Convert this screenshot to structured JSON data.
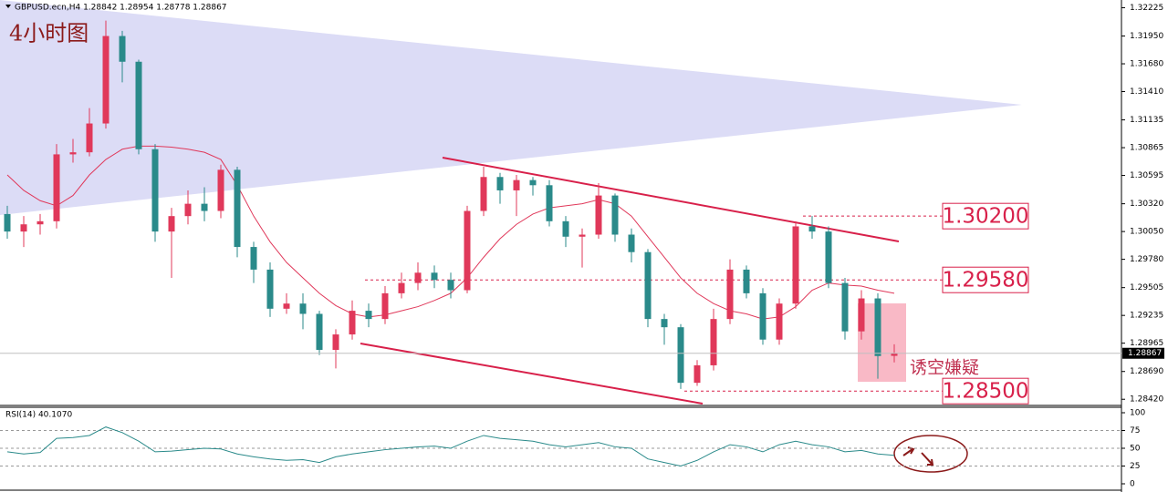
{
  "chart_data": [
    {
      "type": "candlestick",
      "title": "GBPUSD.ecn,H4  1.28842 1.28954 1.28778 1.28867",
      "annotations": [
        "4小时图",
        "诱空嫌疑"
      ],
      "up_color": "#e0385a",
      "down_color": "#2a8a8a",
      "ma_color": "#e0385a",
      "ylim": [
        1.2836,
        1.323
      ],
      "yticks": [
        {
          "value": 1.32225,
          "label": "1.32225"
        },
        {
          "value": 1.3195,
          "label": "1.31950"
        },
        {
          "value": 1.3168,
          "label": "1.31680"
        },
        {
          "value": 1.3141,
          "label": "1.31410"
        },
        {
          "value": 1.31135,
          "label": "1.31135"
        },
        {
          "value": 1.30865,
          "label": "1.30865"
        },
        {
          "value": 1.30595,
          "label": "1.30595"
        },
        {
          "value": 1.3032,
          "label": "1.30320"
        },
        {
          "value": 1.3005,
          "label": "1.30050"
        },
        {
          "value": 1.2978,
          "label": "1.29780"
        },
        {
          "value": 1.29505,
          "label": "1.29505"
        },
        {
          "value": 1.29235,
          "label": "1.29235"
        },
        {
          "value": 1.28965,
          "label": "1.28965"
        },
        {
          "value": 1.2869,
          "label": "1.28690"
        },
        {
          "value": 1.2842,
          "label": "1.28420"
        }
      ],
      "levels": [
        {
          "value": 1.302,
          "label": "1.30200"
        },
        {
          "value": 1.2958,
          "label": "1.29580"
        },
        {
          "value": 1.285,
          "label": "1.28500"
        }
      ],
      "candles": [
        [
          1.3022,
          1.303,
          1.2998,
          1.3005
        ],
        [
          1.3005,
          1.302,
          1.299,
          1.3012
        ],
        [
          1.3012,
          1.3022,
          1.3002,
          1.3015
        ],
        [
          1.3015,
          1.309,
          1.3008,
          1.308
        ],
        [
          1.308,
          1.3095,
          1.3072,
          1.3082
        ],
        [
          1.3082,
          1.3125,
          1.3078,
          1.311
        ],
        [
          1.311,
          1.321,
          1.3105,
          1.3195
        ],
        [
          1.3195,
          1.32,
          1.315,
          1.317
        ],
        [
          1.317,
          1.3172,
          1.308,
          1.3085
        ],
        [
          1.3085,
          1.309,
          1.2995,
          1.3005
        ],
        [
          1.3005,
          1.3028,
          1.296,
          1.302
        ],
        [
          1.302,
          1.3045,
          1.3012,
          1.3032
        ],
        [
          1.3032,
          1.3048,
          1.3015,
          1.3025
        ],
        [
          1.3025,
          1.307,
          1.3018,
          1.3065
        ],
        [
          1.3065,
          1.3068,
          1.298,
          1.299
        ],
        [
          1.299,
          1.2995,
          1.2955,
          1.2968
        ],
        [
          1.2968,
          1.2975,
          1.2922,
          1.293
        ],
        [
          1.293,
          1.2945,
          1.2925,
          1.2935
        ],
        [
          1.2935,
          1.2945,
          1.291,
          1.2925
        ],
        [
          1.2925,
          1.2928,
          1.2885,
          1.289
        ],
        [
          1.289,
          1.291,
          1.2872,
          1.2905
        ],
        [
          1.2905,
          1.2938,
          1.29,
          1.2928
        ],
        [
          1.2928,
          1.2935,
          1.2912,
          1.292
        ],
        [
          1.292,
          1.2952,
          1.2915,
          1.2945
        ],
        [
          1.2945,
          1.2965,
          1.294,
          1.2955
        ],
        [
          1.2955,
          1.2975,
          1.2948,
          1.2965
        ],
        [
          1.2965,
          1.2972,
          1.295,
          1.2958
        ],
        [
          1.2958,
          1.2965,
          1.294,
          1.2948
        ],
        [
          1.2948,
          1.303,
          1.2945,
          1.3025
        ],
        [
          1.3025,
          1.3068,
          1.302,
          1.3058
        ],
        [
          1.3058,
          1.3062,
          1.3032,
          1.3045
        ],
        [
          1.3045,
          1.306,
          1.302,
          1.3055
        ],
        [
          1.3055,
          1.3058,
          1.304,
          1.305
        ],
        [
          1.305,
          1.3055,
          1.301,
          1.3015
        ],
        [
          1.3015,
          1.302,
          1.299,
          1.3
        ],
        [
          1.3,
          1.3008,
          1.297,
          1.3002
        ],
        [
          1.3002,
          1.3052,
          1.2998,
          1.304
        ],
        [
          1.304,
          1.3042,
          1.2995,
          1.3002
        ],
        [
          1.3002,
          1.3008,
          1.2975,
          1.2985
        ],
        [
          1.2985,
          1.2988,
          1.2912,
          1.292
        ],
        [
          1.292,
          1.2925,
          1.2895,
          1.2912
        ],
        [
          1.2912,
          1.2915,
          1.2852,
          1.2858
        ],
        [
          1.2858,
          1.288,
          1.2855,
          1.2875
        ],
        [
          1.2875,
          1.293,
          1.287,
          1.292
        ],
        [
          1.292,
          1.2978,
          1.2915,
          1.2968
        ],
        [
          1.2968,
          1.2972,
          1.294,
          1.2945
        ],
        [
          1.2945,
          1.295,
          1.2895,
          1.29
        ],
        [
          1.29,
          1.294,
          1.2895,
          1.2935
        ],
        [
          1.2935,
          1.3015,
          1.293,
          1.301
        ],
        [
          1.301,
          1.302,
          1.2998,
          1.3005
        ],
        [
          1.3005,
          1.301,
          1.295,
          1.2955
        ],
        [
          1.2955,
          1.296,
          1.29,
          1.2908
        ],
        [
          1.2908,
          1.2948,
          1.29,
          1.294
        ],
        [
          1.294,
          1.2945,
          1.2862,
          1.2884
        ],
        [
          1.28842,
          1.28954,
          1.28778,
          1.28867
        ]
      ],
      "ma": [
        1.306,
        1.3045,
        1.3035,
        1.303,
        1.304,
        1.306,
        1.3075,
        1.3085,
        1.3088,
        1.3088,
        1.3087,
        1.3085,
        1.3082,
        1.3075,
        1.305,
        1.302,
        1.2995,
        1.2975,
        1.296,
        1.2945,
        1.2933,
        1.2925,
        1.2922,
        1.2924,
        1.2928,
        1.2932,
        1.2938,
        1.2945,
        1.296,
        1.298,
        1.2998,
        1.3012,
        1.3022,
        1.3028,
        1.303,
        1.3032,
        1.3036,
        1.3032,
        1.302,
        1.3,
        1.298,
        1.296,
        1.2945,
        1.2935,
        1.2928,
        1.2925,
        1.292,
        1.2922,
        1.2932,
        1.2948,
        1.2955,
        1.2953,
        1.2952,
        1.2948,
        1.2945
      ]
    },
    {
      "type": "line",
      "title": "RSI(14) 40.1070",
      "color": "#2a8a8a",
      "ylim": [
        0,
        100
      ],
      "yticks": [
        100,
        75,
        50,
        25,
        0
      ],
      "values": [
        45,
        42,
        44,
        64,
        65,
        68,
        80,
        72,
        60,
        45,
        46,
        48,
        50,
        49,
        42,
        38,
        35,
        33,
        34,
        30,
        38,
        42,
        45,
        48,
        50,
        52,
        53,
        50,
        60,
        68,
        64,
        62,
        60,
        55,
        52,
        55,
        58,
        52,
        50,
        35,
        30,
        25,
        33,
        45,
        55,
        52,
        45,
        55,
        60,
        55,
        52,
        45,
        47,
        42,
        40.107
      ]
    }
  ]
}
